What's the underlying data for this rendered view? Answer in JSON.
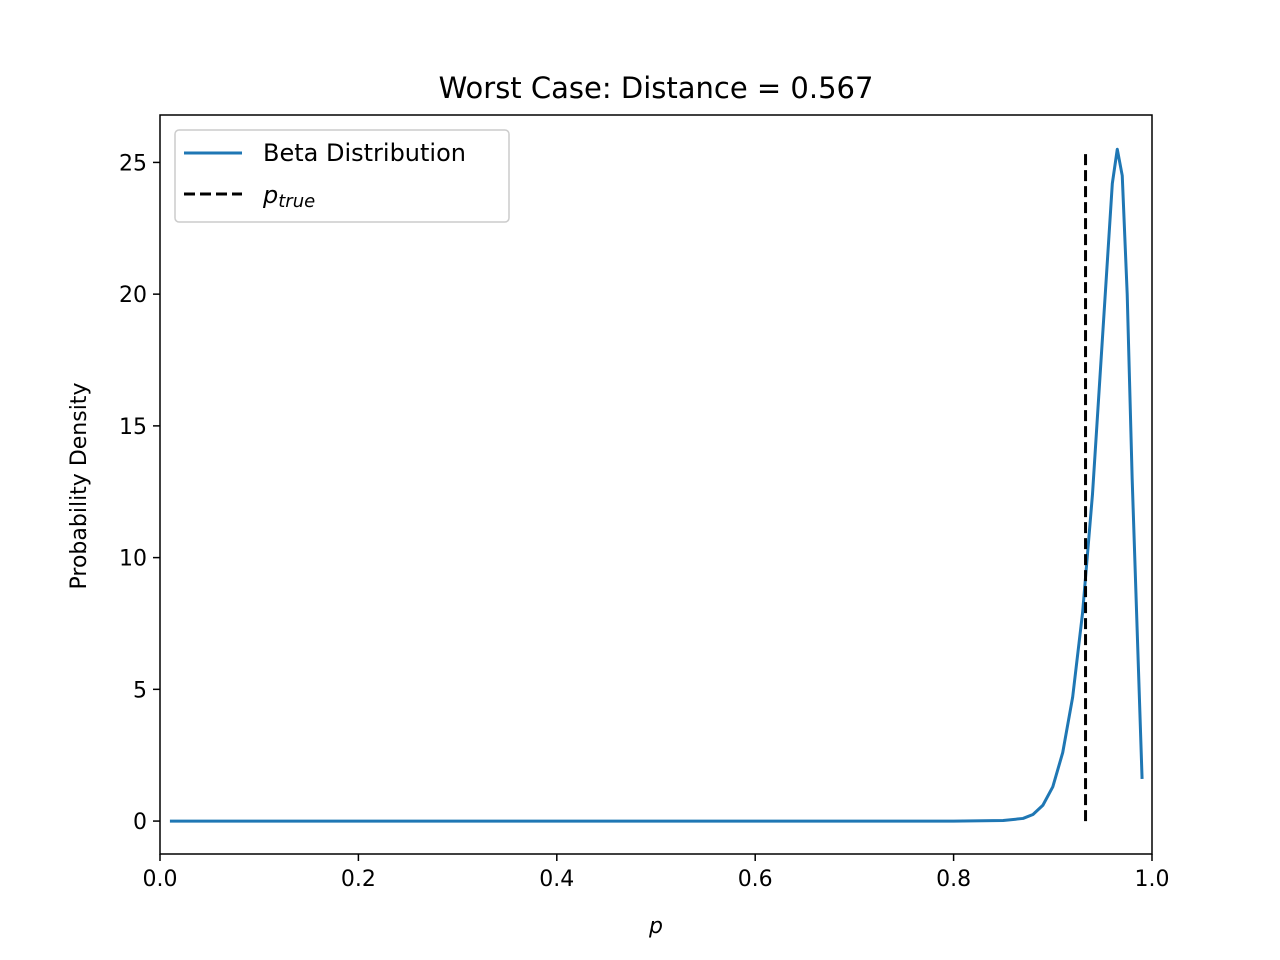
{
  "chart_data": {
    "type": "line",
    "title": "Worst Case: Distance = 0.567",
    "xlabel": "p",
    "ylabel": "Probability Density",
    "xlim": [
      0.0,
      1.0
    ],
    "ylim": [
      -1.25,
      26.8
    ],
    "xticks": [
      0.0,
      0.2,
      0.4,
      0.6,
      0.8,
      1.0
    ],
    "xtick_labels": [
      "0.0",
      "0.2",
      "0.4",
      "0.6",
      "0.8",
      "1.0"
    ],
    "yticks": [
      0,
      5,
      10,
      15,
      20,
      25
    ],
    "ytick_labels": [
      "0",
      "5",
      "10",
      "15",
      "20",
      "25"
    ],
    "grid": false,
    "legend_position": "top-left",
    "series": [
      {
        "name": "Beta Distribution",
        "color": "#1f77b4",
        "style": "solid",
        "x": [
          0.01,
          0.1,
          0.2,
          0.3,
          0.4,
          0.5,
          0.6,
          0.7,
          0.8,
          0.85,
          0.87,
          0.88,
          0.89,
          0.9,
          0.91,
          0.92,
          0.93,
          0.94,
          0.95,
          0.96,
          0.965,
          0.97,
          0.975,
          0.98,
          0.99
        ],
        "y": [
          0,
          0,
          0,
          0,
          0,
          0,
          0,
          0,
          0,
          0.02,
          0.1,
          0.25,
          0.6,
          1.3,
          2.6,
          4.7,
          7.9,
          12.4,
          18.3,
          24.2,
          25.5,
          24.5,
          20.0,
          13.0,
          1.6
        ]
      },
      {
        "name": "p",
        "name_subscript": "true",
        "color": "#000000",
        "style": "dashed",
        "x": [
          0.933,
          0.933
        ],
        "y": [
          0,
          25.5
        ]
      }
    ]
  }
}
